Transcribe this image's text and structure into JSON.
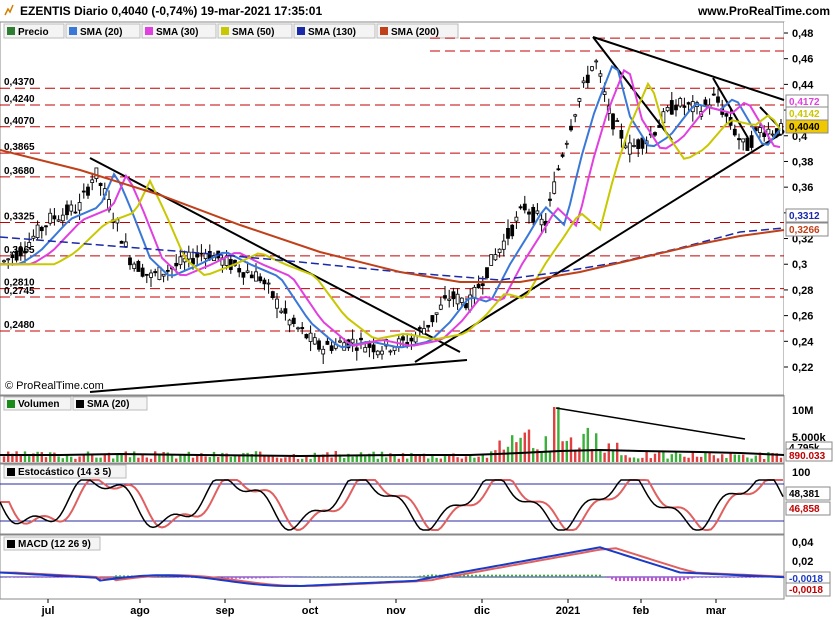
{
  "header": {
    "title": "EZENTIS Diario 0,4040 (-0,74%) 19-mar-2021 17:35:01",
    "site": "www.ProRealTime.com",
    "copyright": "© ProRealTime.com"
  },
  "legend_price": [
    {
      "label": "Precio",
      "color": "#2e7d32"
    },
    {
      "label": "SMA (20)",
      "color": "#3a78d8"
    },
    {
      "label": "SMA (30)",
      "color": "#e040e0"
    },
    {
      "label": "SMA (50)",
      "color": "#c8c800"
    },
    {
      "label": "SMA (130)",
      "color": "#1a2aa8"
    },
    {
      "label": "SMA (200)",
      "color": "#c0401a"
    }
  ],
  "chart_data": {
    "type": "candlestick",
    "price_axis": {
      "ticks": [
        "0,48",
        "0,46",
        "0,44",
        "0,42",
        "0,4",
        "0,38",
        "0,36",
        "0,34",
        "0,32",
        "0,3",
        "0,28",
        "0,26",
        "0,24",
        "0,22"
      ],
      "ylim": [
        0.205,
        0.485
      ]
    },
    "x_months": [
      "jul",
      "ago",
      "sep",
      "oct",
      "nov",
      "dic",
      "2021",
      "feb",
      "mar"
    ],
    "horizontal_levels": [
      "0,4370",
      "0,4240",
      "0,4070",
      "0,3865",
      "0,3680",
      "0,3325",
      "0,3065",
      "0,2810",
      "0,2745",
      "0,2480"
    ],
    "right_labels": [
      {
        "text": "0,4172",
        "color": "#e040e0"
      },
      {
        "text": "0,4142",
        "color": "#c8c800"
      },
      {
        "text": "0,4040",
        "color": "#000000"
      },
      {
        "text": "0,3312",
        "color": "#1a2aa8"
      },
      {
        "text": "0,3266",
        "color": "#c0401a"
      }
    ],
    "volume": {
      "label": "Volumen",
      "sma_label": "SMA (20)",
      "ticks": [
        "10M",
        "5.000k"
      ],
      "values": [
        "4.795k",
        "890.033"
      ]
    },
    "stochastic": {
      "label": "Estocástico (14 3 5)",
      "ticks": [
        "100"
      ],
      "values": [
        "48,381",
        "46,858"
      ]
    },
    "macd": {
      "label": "MACD (12 26 9)",
      "ticks": [
        "0,04",
        "0,02"
      ],
      "values": [
        "-0,0018",
        "-0,0018"
      ]
    }
  }
}
